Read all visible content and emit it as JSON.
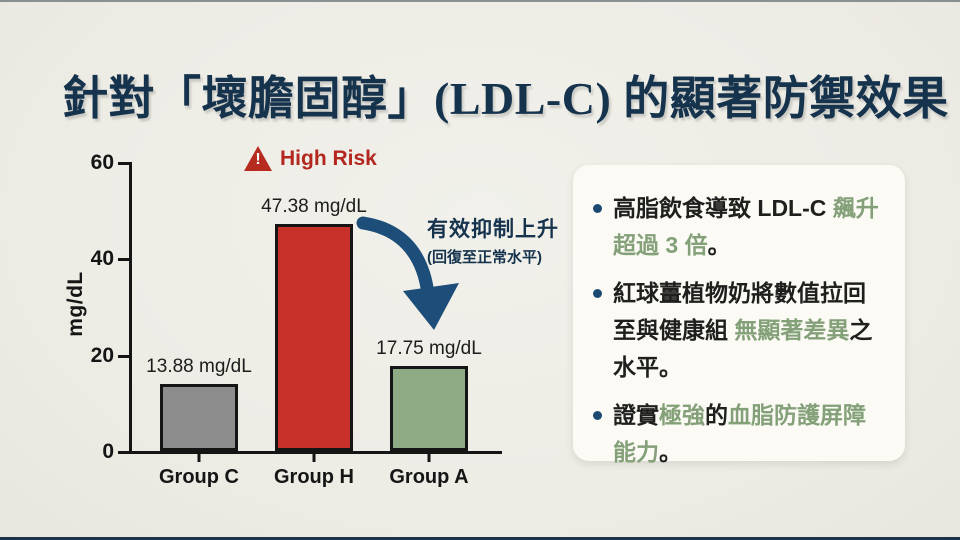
{
  "title": "針對「壞膽固醇」(LDL-C) 的顯著防禦效果",
  "colors": {
    "background": "#edece5",
    "title_navy": "#16334d",
    "axis_black": "#151515",
    "bar_gray": "#8d8d8d",
    "bar_red": "#c8302a",
    "bar_green": "#8fab85",
    "accent_green_text": "#84a079",
    "high_risk_red": "#b3271e",
    "arrow_navy": "#1d4e79",
    "bullet_dot_navy": "#1b4a70",
    "panel_bg": "#fbfaf4"
  },
  "chart_data": {
    "type": "bar",
    "title": "",
    "xlabel": "",
    "ylabel": "mg/dL",
    "ylim": [
      0,
      60
    ],
    "ytick_labels": [
      "60",
      "40",
      "20",
      "0"
    ],
    "grid": "off",
    "legend": "none",
    "categories": [
      "Group C",
      "Group H",
      "Group A"
    ],
    "values": [
      13.88,
      47.38,
      17.75
    ],
    "points": [
      {
        "label": "Group C",
        "value": 13.88,
        "value_label": "13.88 mg/dL",
        "color": "#8d8d8d"
      },
      {
        "label": "Group H",
        "value": 47.38,
        "value_label": "47.38 mg/dL",
        "color": "#c8302a"
      },
      {
        "label": "Group A",
        "value": 17.75,
        "value_label": "17.75 mg/dL",
        "color": "#8fab85"
      }
    ]
  },
  "annotations": {
    "high_risk": "High Risk",
    "arrow_title": "有效抑制上升",
    "arrow_sub": "(回復至正常水平)"
  },
  "panel": {
    "bullets": [
      {
        "parts": [
          {
            "text": "高脂飲食導致 LDL-C ",
            "color": "dark"
          },
          {
            "text": "飆升超過 3 倍",
            "color": "green"
          },
          {
            "text": "。",
            "color": "dark"
          }
        ]
      },
      {
        "parts": [
          {
            "text": "紅球薑植物奶將數值拉回至與健康組 ",
            "color": "dark"
          },
          {
            "text": "無顯著差異",
            "color": "green"
          },
          {
            "text": "之水平。",
            "color": "dark"
          }
        ]
      },
      {
        "parts": [
          {
            "text": "證實",
            "color": "dark"
          },
          {
            "text": "極強",
            "color": "green"
          },
          {
            "text": "的",
            "color": "dark"
          },
          {
            "text": "血脂防護屏障能力",
            "color": "green"
          },
          {
            "text": "。",
            "color": "dark"
          }
        ]
      }
    ]
  }
}
